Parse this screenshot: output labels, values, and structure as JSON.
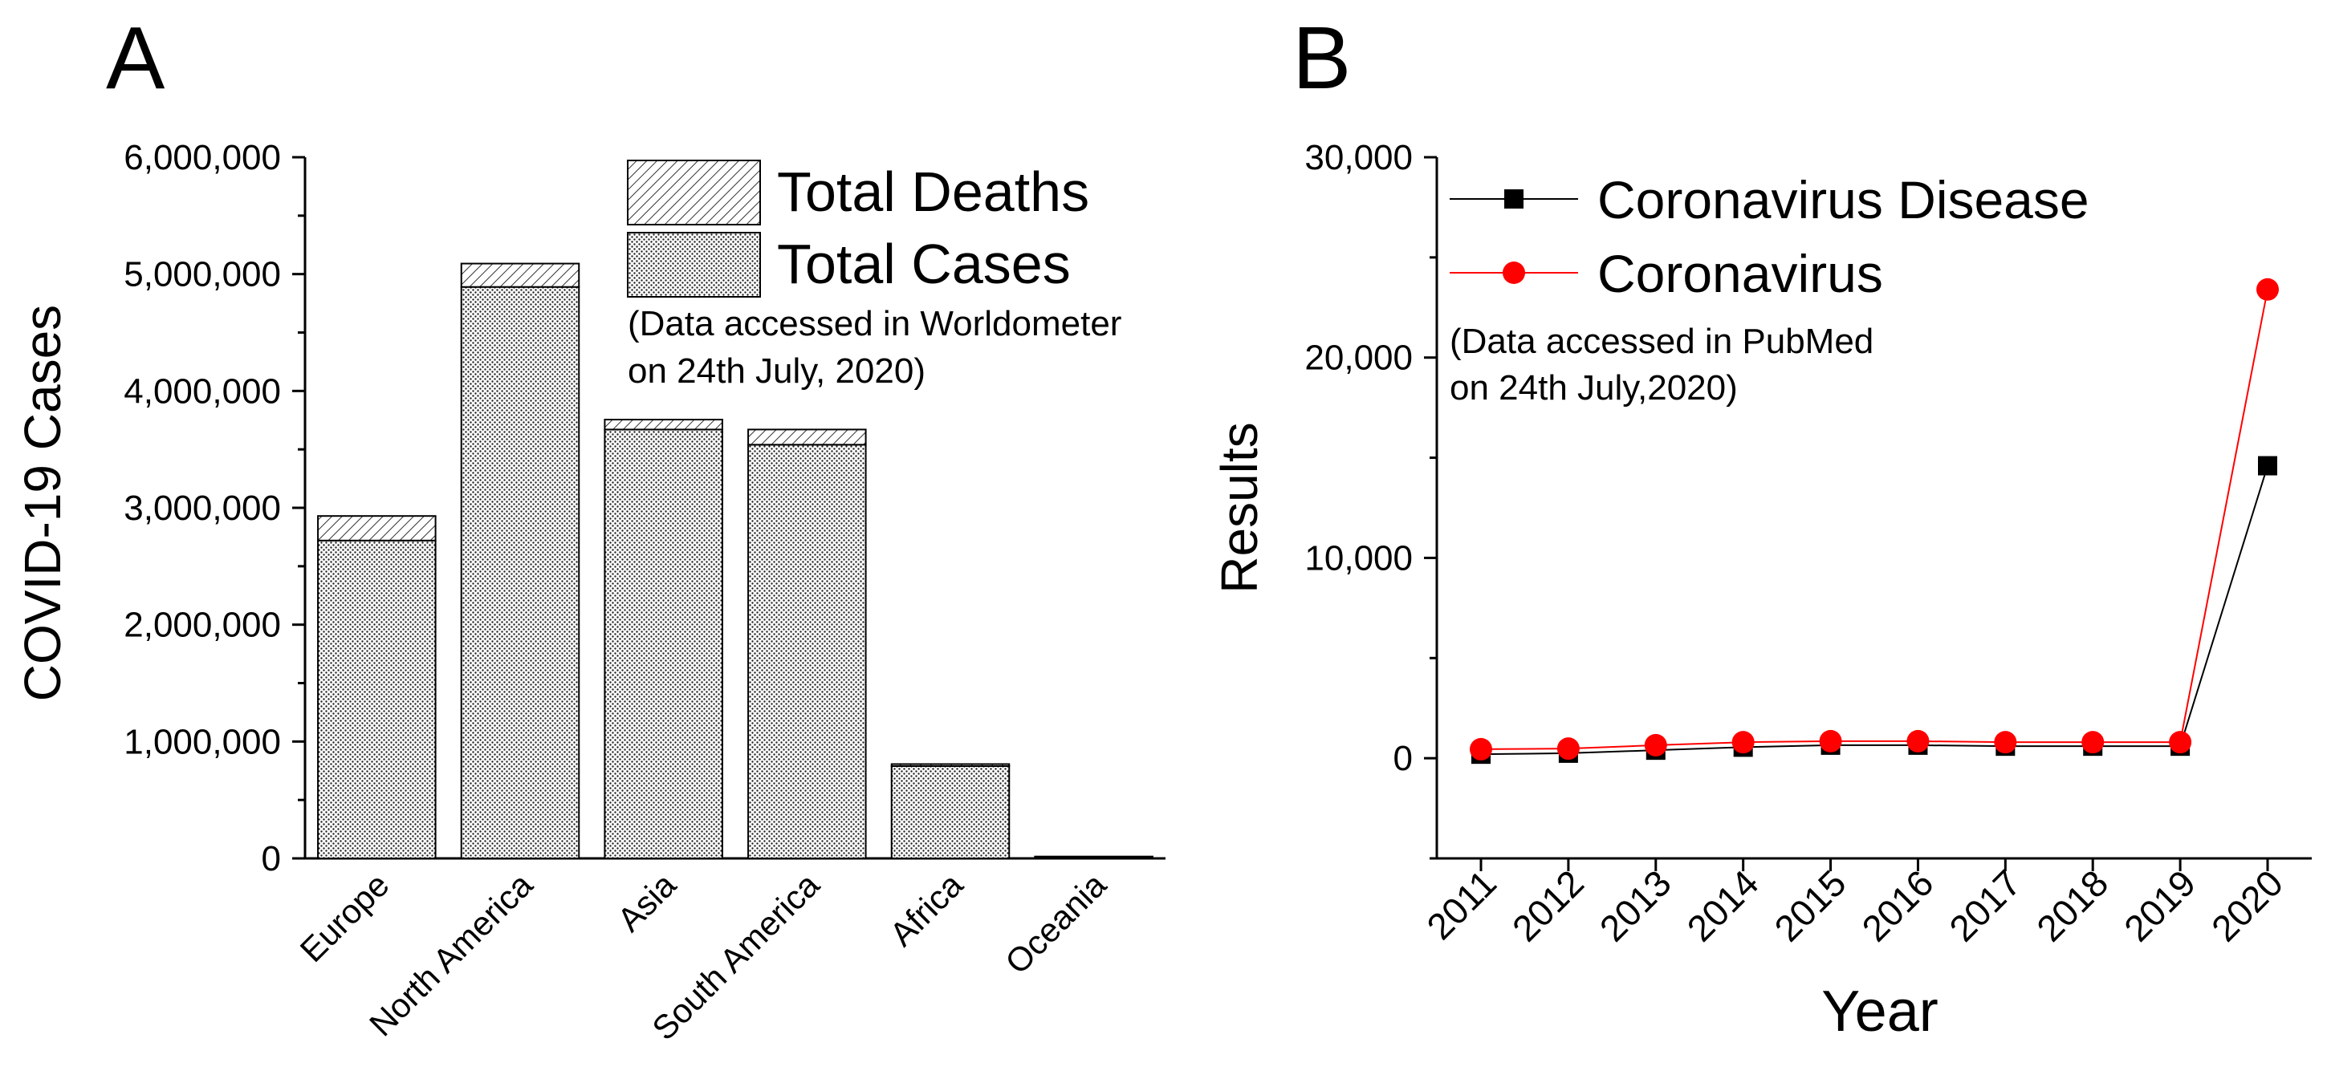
{
  "chart_data": [
    {
      "panel": "A",
      "type": "bar",
      "stacked": true,
      "ylabel": "COVID-19 Cases",
      "xlabel": "",
      "ylim": [
        0,
        6000000
      ],
      "yticks": [
        "0",
        "1,000,000",
        "2,000,000",
        "3,000,000",
        "4,000,000",
        "5,000,000",
        "6,000,000"
      ],
      "ytick_values": [
        0,
        1000000,
        2000000,
        3000000,
        4000000,
        5000000,
        6000000
      ],
      "categories": [
        "Europe",
        "North America",
        "Asia",
        "South America",
        "Africa",
        "Oceania"
      ],
      "series": [
        {
          "name": "Total Cases",
          "pattern": "dots",
          "values": [
            2720000,
            4890000,
            3670000,
            3540000,
            790000,
            15000
          ]
        },
        {
          "name": "Total Deaths",
          "pattern": "hatch",
          "values": [
            210000,
            200000,
            85000,
            130000,
            17000,
            200
          ]
        }
      ],
      "legend": [
        "Total Deaths",
        "Total Cases"
      ],
      "annotation": [
        "(Data accessed in Worldometer",
        "on 24th July, 2020)"
      ]
    },
    {
      "panel": "B",
      "type": "line",
      "xlabel": "Year",
      "ylabel": "Results",
      "ylim": [
        -5000,
        30000
      ],
      "yticks": [
        "0",
        "10,000",
        "20,000",
        "30,000"
      ],
      "ytick_values": [
        0,
        10000,
        20000,
        30000
      ],
      "x": [
        "2011",
        "2012",
        "2013",
        "2014",
        "2015",
        "2016",
        "2017",
        "2018",
        "2019",
        "2020"
      ],
      "series": [
        {
          "name": "Coronavirus Disease",
          "color": "#000000",
          "marker": "square",
          "values": [
            200,
            250,
            400,
            550,
            650,
            650,
            600,
            600,
            600,
            14600
          ]
        },
        {
          "name": "Coronavirus",
          "color": "#ff0000",
          "marker": "circle",
          "values": [
            450,
            480,
            650,
            800,
            850,
            850,
            800,
            800,
            800,
            23400
          ]
        }
      ],
      "annotation": [
        "(Data accessed in PubMed",
        "on 24th July,2020)"
      ]
    }
  ]
}
